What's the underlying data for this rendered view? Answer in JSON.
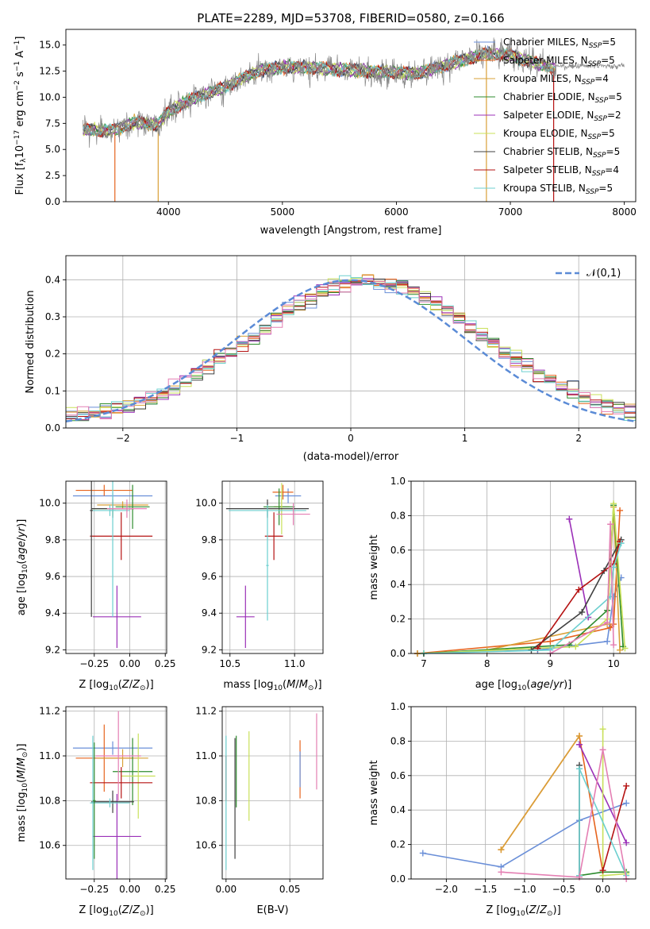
{
  "colors": {
    "chabrier_miles": "#6a8fd8",
    "salpeter_miles": "#e6641e",
    "kroupa_miles": "#d9a037",
    "chabrier_elodie": "#2e8b2e",
    "salpeter_elodie": "#9b30b8",
    "kroupa_elodie": "#c9e05a",
    "chabrier_stelib": "#404040",
    "salpeter_stelib": "#b51212",
    "kroupa_stelib": "#6ccfcf",
    "pink": "#e47fb3",
    "data": "#888888"
  },
  "chart_data": [
    {
      "id": "spectrum",
      "type": "line",
      "title": "PLATE=2289, MJD=53708, FIBERID=0580, z=0.166",
      "xlabel": "wavelength [Angstrom, rest frame]",
      "ylabel": "Flux [f$_\\lambda$10$^{-17}$ erg cm$^{-2}$ s$^{-1}$ A$^{-1}$]",
      "ylabel_main": "Flux [f",
      "ylabel_sub": "λ",
      "ylabel_rest": "10",
      "xlim": [
        3100,
        8100
      ],
      "ylim": [
        0,
        16.5
      ],
      "xticks": [
        4000,
        5000,
        6000,
        7000,
        8000
      ],
      "yticks": [
        0.0,
        2.5,
        5.0,
        7.5,
        10.0,
        12.5,
        15.0
      ],
      "legend_position": "top-right",
      "legend": [
        {
          "name": "Chabrier MILES",
          "n": "5",
          "color": "#6a8fd8"
        },
        {
          "name": "Salpeter MILES",
          "n": "5",
          "color": "#e6641e"
        },
        {
          "name": "Kroupa MILES",
          "n": "4",
          "color": "#d9a037"
        },
        {
          "name": "Chabrier ELODIE",
          "n": "5",
          "color": "#2e8b2e"
        },
        {
          "name": "Salpeter ELODIE",
          "n": "2",
          "color": "#9b30b8"
        },
        {
          "name": "Kroupa ELODIE",
          "n": "5",
          "color": "#c9e05a"
        },
        {
          "name": "Chabrier STELIB",
          "n": "5",
          "color": "#404040"
        },
        {
          "name": "Salpeter STELIB",
          "n": "4",
          "color": "#b51212"
        },
        {
          "name": "Kroupa STELIB",
          "n": "5",
          "color": "#6ccfcf"
        }
      ],
      "continuum": [
        [
          3250,
          6.9
        ],
        [
          3500,
          6.8
        ],
        [
          3700,
          7.6
        ],
        [
          3900,
          7.4
        ],
        [
          4000,
          8.6
        ],
        [
          4200,
          9.8
        ],
        [
          4500,
          11.0
        ],
        [
          4800,
          12.6
        ],
        [
          5000,
          12.9
        ],
        [
          5300,
          12.8
        ],
        [
          5600,
          12.6
        ],
        [
          5900,
          12.4
        ],
        [
          6200,
          12.3
        ],
        [
          6500,
          13.3
        ],
        [
          6800,
          14.2
        ],
        [
          7000,
          14.0
        ],
        [
          7200,
          13.4
        ],
        [
          7400,
          12.7
        ]
      ],
      "breaks": [
        {
          "x": 3530,
          "color": "#e6641e"
        },
        {
          "x": 3910,
          "color": "#d9a037"
        },
        {
          "x": 6790,
          "color": "#d9a037"
        },
        {
          "x": 7380,
          "color": "#b51212"
        }
      ]
    },
    {
      "id": "residuals",
      "type": "histogram",
      "xlabel": "(data-model)/error",
      "ylabel": "Normed distribution",
      "xlim": [
        -2.5,
        2.5
      ],
      "ylim": [
        0,
        0.465
      ],
      "xticks": [
        -2,
        -1,
        0,
        1,
        2
      ],
      "yticks": [
        0.0,
        0.1,
        0.2,
        0.3,
        0.4
      ],
      "grid": true,
      "legend_position": "top-right",
      "legend_label": "𝒩(0,1)",
      "bin_width": 0.1
    },
    {
      "id": "age_vs_Z",
      "type": "errorbar",
      "xlabel": "Z [log",
      "xlabel_full": "Z [log10(Z/Z⊙)]",
      "ylabel": "age [log10(age/yr)]",
      "xlim": [
        -0.45,
        0.26
      ],
      "ylim": [
        9.18,
        10.12
      ],
      "xticks": [
        -0.25,
        0.0,
        0.25
      ],
      "yticks": [
        9.2,
        9.4,
        9.6,
        9.8,
        10.0
      ],
      "grid": true,
      "points": [
        {
          "x": -0.12,
          "y": 10.04,
          "xerr": 0.28,
          "yerr": 0.02,
          "color": "#6a8fd8"
        },
        {
          "x": -0.18,
          "y": 10.07,
          "xerr": 0.2,
          "yerr": 0.03,
          "color": "#e6641e"
        },
        {
          "x": -0.05,
          "y": 9.99,
          "xerr": 0.18,
          "yerr": 0.02,
          "color": "#d9a037"
        },
        {
          "x": 0.02,
          "y": 9.98,
          "xerr": 0.12,
          "yerr": 0.12,
          "color": "#2e8b2e"
        },
        {
          "x": -0.09,
          "y": 9.38,
          "xerr": 0.17,
          "yerr": 0.17,
          "color": "#9b30b8"
        },
        {
          "x": -0.12,
          "y": 9.97,
          "xerr": 0.15,
          "yerr": 0.04,
          "color": "#c9e05a"
        },
        {
          "x": -0.12,
          "y": 9.97,
          "xerr": 0.15,
          "yerr": 0.05,
          "color": "#404040"
        },
        {
          "x": -0.06,
          "y": 9.82,
          "xerr": 0.22,
          "yerr": 0.13,
          "color": "#b51212"
        },
        {
          "x": -0.14,
          "y": 9.96,
          "xerr": 0.14,
          "yerr": 0.03,
          "color": "#6ccfcf"
        },
        {
          "x": -0.12,
          "y": 9.96,
          "xerr": 0.02,
          "yerr": 0.58,
          "color": "#6ccfcf"
        },
        {
          "x": -0.27,
          "y": 9.96,
          "xerr": 0.01,
          "yerr": 0.58,
          "color": "#404040"
        },
        {
          "x": -0.02,
          "y": 9.97,
          "xerr": 0.14,
          "yerr": 0.05,
          "color": "#e47fb3"
        }
      ]
    },
    {
      "id": "age_vs_mass",
      "type": "errorbar",
      "xlabel_full": "mass [log10(M/M⊙)]",
      "xlim": [
        10.44,
        11.22
      ],
      "ylim": [
        9.18,
        10.12
      ],
      "xticks": [
        10.5,
        11.0
      ],
      "yticks": [
        9.2,
        9.4,
        9.6,
        9.8,
        10.0
      ],
      "grid": true,
      "points": [
        {
          "x": 10.95,
          "y": 10.04,
          "xerr": 0.1,
          "yerr": 0.04,
          "color": "#6a8fd8"
        },
        {
          "x": 10.91,
          "y": 10.06,
          "xerr": 0.08,
          "yerr": 0.04,
          "color": "#e6641e"
        },
        {
          "x": 10.9,
          "y": 9.98,
          "xerr": 0.06,
          "yerr": 0.05,
          "color": "#d9a037"
        },
        {
          "x": 10.88,
          "y": 9.98,
          "xerr": 0.12,
          "yerr": 0.1,
          "color": "#2e8b2e"
        },
        {
          "x": 10.62,
          "y": 9.38,
          "xerr": 0.07,
          "yerr": 0.17,
          "color": "#9b30b8"
        },
        {
          "x": 10.9,
          "y": 9.97,
          "xerr": 0.1,
          "yerr": 0.14,
          "color": "#c9e05a"
        },
        {
          "x": 10.79,
          "y": 9.97,
          "xerr": 0.32,
          "yerr": 0.05,
          "color": "#404040"
        },
        {
          "x": 10.84,
          "y": 9.82,
          "xerr": 0.07,
          "yerr": 0.13,
          "color": "#b51212"
        },
        {
          "x": 10.79,
          "y": 9.96,
          "xerr": 0.3,
          "yerr": 0.03,
          "color": "#6ccfcf"
        },
        {
          "x": 10.79,
          "y": 9.66,
          "xerr": 0.01,
          "yerr": 0.3,
          "color": "#6ccfcf"
        },
        {
          "x": 10.99,
          "y": 9.94,
          "xerr": 0.13,
          "yerr": 0.06,
          "color": "#e47fb3"
        }
      ]
    },
    {
      "id": "mass_weight_vs_age",
      "type": "line",
      "xlabel_full": "age [log10(age/yr)]",
      "ylabel": "mass weight",
      "xlim": [
        6.8,
        10.35
      ],
      "ylim": [
        0,
        1.0
      ],
      "xticks": [
        7,
        8,
        9,
        10
      ],
      "yticks": [
        0.0,
        0.2,
        0.4,
        0.6,
        0.8,
        1.0
      ],
      "grid": true,
      "series": [
        {
          "color": "#6a8fd8",
          "points": [
            [
              6.9,
              0.0
            ],
            [
              8.8,
              0.02
            ],
            [
              9.9,
              0.07
            ],
            [
              10.0,
              0.33
            ],
            [
              10.12,
              0.44
            ]
          ]
        },
        {
          "color": "#e6641e",
          "points": [
            [
              6.9,
              0.0
            ],
            [
              9.0,
              0.07
            ],
            [
              9.95,
              0.15
            ],
            [
              10.0,
              0.17
            ],
            [
              10.1,
              0.83
            ]
          ]
        },
        {
          "color": "#d9a037",
          "points": [
            [
              6.9,
              0.0
            ],
            [
              8.0,
              0.02
            ],
            [
              9.9,
              0.17
            ],
            [
              10.0,
              0.85
            ],
            [
              10.1,
              0.02
            ]
          ]
        },
        {
          "color": "#2e8b2e",
          "points": [
            [
              7.0,
              0.0
            ],
            [
              9.3,
              0.05
            ],
            [
              9.9,
              0.25
            ],
            [
              10.0,
              0.86
            ],
            [
              10.15,
              0.04
            ]
          ]
        },
        {
          "color": "#9b30b8",
          "points": [
            [
              9.3,
              0.78
            ],
            [
              9.6,
              0.21
            ]
          ]
        },
        {
          "color": "#c9e05a",
          "points": [
            [
              7.0,
              0.0
            ],
            [
              9.4,
              0.04
            ],
            [
              9.9,
              0.2
            ],
            [
              10.0,
              0.87
            ],
            [
              10.18,
              0.03
            ]
          ]
        },
        {
          "color": "#404040",
          "points": [
            [
              8.7,
              0.02
            ],
            [
              9.5,
              0.24
            ],
            [
              9.85,
              0.48
            ],
            [
              10.12,
              0.66
            ]
          ]
        },
        {
          "color": "#b51212",
          "points": [
            [
              8.8,
              0.03
            ],
            [
              9.45,
              0.37
            ],
            [
              10.0,
              0.52
            ],
            [
              10.1,
              0.65
            ]
          ]
        },
        {
          "color": "#6ccfcf",
          "points": [
            [
              7.0,
              0.0
            ],
            [
              9.0,
              0.02
            ],
            [
              9.95,
              0.33
            ],
            [
              10.0,
              0.5
            ],
            [
              10.12,
              0.64
            ]
          ]
        },
        {
          "color": "#e47fb3",
          "points": [
            [
              9.0,
              0.0
            ],
            [
              9.9,
              0.18
            ],
            [
              9.95,
              0.75
            ],
            [
              10.0,
              0.05
            ]
          ]
        }
      ]
    },
    {
      "id": "mass_vs_Z",
      "type": "errorbar",
      "xlabel_full": "Z [log10(Z/Z⊙)]",
      "ylabel": "mass [log10(M/M⊙)]",
      "xlim": [
        -0.45,
        0.26
      ],
      "ylim": [
        10.45,
        11.22
      ],
      "xticks": [
        -0.25,
        0.0,
        0.25
      ],
      "yticks": [
        10.6,
        10.8,
        11.0,
        11.2
      ],
      "grid": true,
      "points": [
        {
          "x": -0.12,
          "y": 11.035,
          "xerr": 0.28,
          "yerr": 0.03,
          "color": "#6a8fd8"
        },
        {
          "x": -0.18,
          "y": 10.99,
          "xerr": 0.2,
          "yerr": 0.15,
          "color": "#e6641e"
        },
        {
          "x": -0.05,
          "y": 10.99,
          "xerr": 0.18,
          "yerr": 0.04,
          "color": "#d9a037"
        },
        {
          "x": 0.02,
          "y": 10.93,
          "xerr": 0.14,
          "yerr": 0.15,
          "color": "#2e8b2e"
        },
        {
          "x": -0.09,
          "y": 10.64,
          "xerr": 0.17,
          "yerr": 0.19,
          "color": "#9b30b8"
        },
        {
          "x": 0.06,
          "y": 10.91,
          "xerr": 0.12,
          "yerr": 0.19,
          "color": "#c9e05a"
        },
        {
          "x": -0.12,
          "y": 10.795,
          "xerr": 0.15,
          "yerr": 0.05,
          "color": "#404040"
        },
        {
          "x": -0.06,
          "y": 10.88,
          "xerr": 0.22,
          "yerr": 0.07,
          "color": "#b51212"
        },
        {
          "x": -0.14,
          "y": 10.79,
          "xerr": 0.14,
          "yerr": 0.02,
          "color": "#6ccfcf"
        },
        {
          "x": -0.26,
          "y": 10.79,
          "xerr": 0.01,
          "yerr": 0.3,
          "color": "#6ccfcf"
        },
        {
          "x": -0.08,
          "y": 11.0,
          "xerr": 0.16,
          "yerr": 0.2,
          "color": "#e47fb3"
        },
        {
          "x": -0.25,
          "y": 10.8,
          "xerr": 0.01,
          "yerr": 0.26,
          "color": "#2e8b2e"
        }
      ]
    },
    {
      "id": "mass_vs_EBV",
      "type": "errorbar",
      "xlabel_full": "E(B-V)",
      "xlim": [
        -0.003,
        0.076
      ],
      "ylim": [
        10.45,
        11.22
      ],
      "xticks": [
        0.0,
        0.05
      ],
      "yticks": [
        10.6,
        10.8,
        11.0,
        11.2
      ],
      "grid": true,
      "points": [
        {
          "x": 0.0,
          "y": 10.9,
          "xerr": 0.0,
          "yerr": 0.1,
          "color": "#b51212"
        },
        {
          "x": 0.0,
          "y": 10.79,
          "xerr": 0.0,
          "yerr": 0.3,
          "color": "#6ccfcf"
        },
        {
          "x": 0.007,
          "y": 10.81,
          "xerr": 0.0,
          "yerr": 0.27,
          "color": "#404040"
        },
        {
          "x": 0.008,
          "y": 10.93,
          "xerr": 0.0,
          "yerr": 0.16,
          "color": "#2e8b2e"
        },
        {
          "x": 0.018,
          "y": 10.91,
          "xerr": 0.0,
          "yerr": 0.2,
          "color": "#c9e05a"
        },
        {
          "x": 0.058,
          "y": 10.94,
          "xerr": 0.0,
          "yerr": 0.13,
          "color": "#e6641e"
        },
        {
          "x": 0.058,
          "y": 10.94,
          "xerr": 0.0,
          "yerr": 0.08,
          "color": "#6a8fd8"
        },
        {
          "x": 0.071,
          "y": 11.02,
          "xerr": 0.0,
          "yerr": 0.17,
          "color": "#e47fb3"
        }
      ]
    },
    {
      "id": "mass_weight_vs_Z",
      "type": "line",
      "xlabel_full": "Z [log10(Z/Z⊙)]",
      "ylabel": "mass weight",
      "xlim": [
        -2.45,
        0.42
      ],
      "ylim": [
        0,
        1.0
      ],
      "xticks": [
        -2.0,
        -1.5,
        -1.0,
        -0.5,
        0.0
      ],
      "yticks": [
        0.0,
        0.2,
        0.4,
        0.6,
        0.8,
        1.0
      ],
      "grid": true,
      "series": [
        {
          "color": "#6a8fd8",
          "points": [
            [
              -2.3,
              0.15
            ],
            [
              -1.3,
              0.07
            ],
            [
              -0.3,
              0.34
            ],
            [
              0.3,
              0.44
            ]
          ]
        },
        {
          "color": "#e6641e",
          "points": [
            [
              -1.3,
              0.17
            ],
            [
              -0.3,
              0.83
            ],
            [
              0.0,
              0.04
            ]
          ]
        },
        {
          "color": "#d9a037",
          "points": [
            [
              -1.3,
              0.17
            ],
            [
              -0.3,
              0.83
            ]
          ]
        },
        {
          "color": "#2e8b2e",
          "points": [
            [
              -0.3,
              0.02
            ],
            [
              0.0,
              0.04
            ],
            [
              0.3,
              0.04
            ]
          ]
        },
        {
          "color": "#9b30b8",
          "points": [
            [
              -0.3,
              0.78
            ],
            [
              0.3,
              0.21
            ]
          ]
        },
        {
          "color": "#c9e05a",
          "points": [
            [
              0.0,
              0.87
            ],
            [
              0.0,
              0.02
            ],
            [
              0.3,
              0.03
            ]
          ]
        },
        {
          "color": "#404040",
          "points": [
            [
              -0.3,
              0.66
            ],
            [
              -0.3,
              0.02
            ]
          ]
        },
        {
          "color": "#b51212",
          "points": [
            [
              0.0,
              0.05
            ],
            [
              0.3,
              0.54
            ]
          ]
        },
        {
          "color": "#6ccfcf",
          "points": [
            [
              -0.3,
              0.02
            ],
            [
              -0.3,
              0.64
            ],
            [
              0.3,
              0.02
            ]
          ]
        },
        {
          "color": "#e47fb3",
          "points": [
            [
              -1.3,
              0.04
            ],
            [
              -0.3,
              0.01
            ],
            [
              0.0,
              0.75
            ],
            [
              0.3,
              0.0
            ]
          ]
        }
      ]
    }
  ]
}
